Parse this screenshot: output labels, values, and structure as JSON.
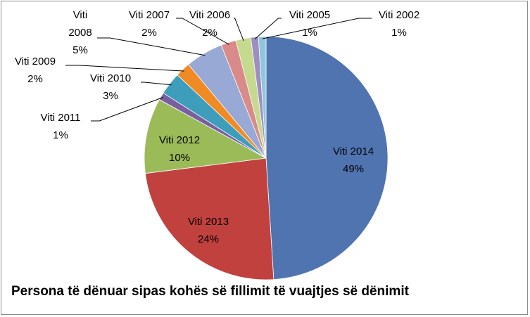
{
  "chart_data": {
    "type": "pie",
    "title": "Persona të dënuar sipas kohës së fillimit të vuajtjes së dënimit",
    "slices": [
      {
        "name": "Viti 2014",
        "value": 49,
        "label": "49%",
        "color": "#4f74b0"
      },
      {
        "name": "Viti 2013",
        "value": 24,
        "label": "24%",
        "color": "#c0413d"
      },
      {
        "name": "Viti 2012",
        "value": 10,
        "label": "10%",
        "color": "#9bbb59"
      },
      {
        "name": "Viti 2011",
        "value": 1,
        "label": "1%",
        "color": "#7a5fa0"
      },
      {
        "name": "Viti 2010",
        "value": 3,
        "label": "3%",
        "color": "#3d9dbb"
      },
      {
        "name": "Viti 2009",
        "value": 2,
        "label": "2%",
        "color": "#f08a25"
      },
      {
        "name": "Viti 2008",
        "value": 5,
        "label": "5%",
        "color": "#97a9d4"
      },
      {
        "name": "Viti 2007",
        "value": 2,
        "label": "2%",
        "color": "#d98a89"
      },
      {
        "name": "Viti 2006",
        "value": 2,
        "label": "2%",
        "color": "#c5d98f"
      },
      {
        "name": "Viti 2005",
        "value": 1,
        "label": "1%",
        "color": "#9e8ec2"
      },
      {
        "name": "Viti 2002",
        "value": 1,
        "label": "1%",
        "color": "#8fc6dd"
      }
    ]
  }
}
